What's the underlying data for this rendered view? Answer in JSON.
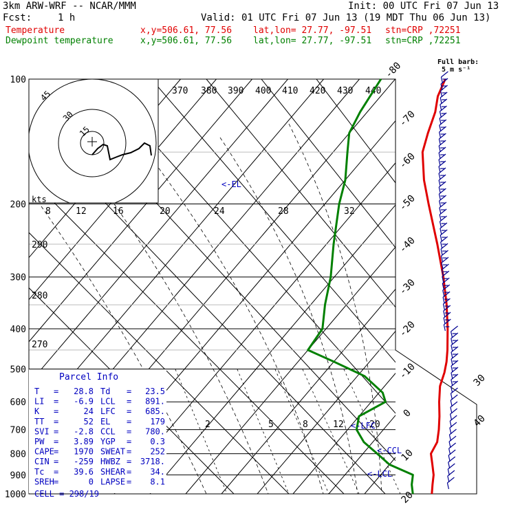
{
  "header": {
    "model": "3km ARW-WRF -- NCAR/MMM",
    "init": "Init: 00 UTC Fri 07 Jun 13",
    "fcst_label": "Fcst:",
    "fcst_value": "1 h",
    "valid": "Valid: 01 UTC Fri 07 Jun 13 (19 MDT Thu 06 Jun 13)",
    "temp_label": "Temperature",
    "dew_label": "Dewpoint temperature",
    "xy": "x,y=506.61, 77.56",
    "latlon": "lat,lon= 27.77, -97.51",
    "stn": "stn=CRP ,72251"
  },
  "colors": {
    "temperature": "#e00000",
    "dewpoint": "#008000",
    "parcel_info": "#0000c0",
    "wind": "#000090",
    "grid": "#000000"
  },
  "barb_legend": {
    "line1": "Full barb:",
    "line2": "5 m s⁻¹"
  },
  "hodograph": {
    "speed_unit": "kts",
    "ring_labels": [
      "15",
      "30",
      "45"
    ],
    "speed_ticks": [
      "8",
      "12",
      "16",
      "20",
      "24",
      "28",
      "32"
    ]
  },
  "theta_labels": [
    "370",
    "380",
    "390",
    "400",
    "410",
    "420",
    "430",
    "440"
  ],
  "theta_side_labels": [
    "290",
    "280",
    "270"
  ],
  "mixing_ratio_labels": [
    "2",
    "5",
    "8",
    "12",
    "20"
  ],
  "level_markers": [
    "EL",
    "LFC",
    "CCL",
    "LCL"
  ],
  "chart_data": {
    "type": "line",
    "title": "",
    "ylabel": "",
    "y_scale": "log",
    "ylim": [
      1000,
      100
    ],
    "pressure_ticks": [
      100,
      200,
      300,
      400,
      500,
      600,
      700,
      800,
      900,
      1000
    ],
    "isotherm_labels": [
      -80,
      -70,
      -60,
      -50,
      -40,
      -30,
      -20,
      -10,
      0,
      10,
      20,
      30,
      40
    ],
    "series": [
      {
        "name": "Temperature",
        "points": [
          [
            1000,
            28.8
          ],
          [
            950,
            26.8
          ],
          [
            900,
            24.8
          ],
          [
            850,
            22.0
          ],
          [
            800,
            19.0
          ],
          [
            750,
            18.0
          ],
          [
            700,
            15.5
          ],
          [
            650,
            12.5
          ],
          [
            600,
            9.0
          ],
          [
            550,
            5.5
          ],
          [
            510,
            3.5
          ],
          [
            480,
            1.5
          ],
          [
            450,
            -1.0
          ],
          [
            400,
            -6.0
          ],
          [
            350,
            -12.0
          ],
          [
            300,
            -19.5
          ],
          [
            250,
            -29.0
          ],
          [
            200,
            -41.0
          ],
          [
            175,
            -48.0
          ],
          [
            150,
            -55.0
          ],
          [
            135,
            -58.0
          ],
          [
            120,
            -61.0
          ],
          [
            110,
            -64.0
          ],
          [
            100,
            -66.0
          ]
        ]
      },
      {
        "name": "Dewpoint temperature",
        "points": [
          [
            1000,
            23.5
          ],
          [
            950,
            21.0
          ],
          [
            900,
            19.0
          ],
          [
            850,
            10.0
          ],
          [
            800,
            4.0
          ],
          [
            750,
            -2.5
          ],
          [
            700,
            -7.5
          ],
          [
            650,
            -10.0
          ],
          [
            600,
            -6.0
          ],
          [
            570,
            -9.0
          ],
          [
            520,
            -18.0
          ],
          [
            480,
            -30.0
          ],
          [
            450,
            -40.0
          ],
          [
            400,
            -41.0
          ],
          [
            350,
            -46.0
          ],
          [
            300,
            -51.0
          ],
          [
            250,
            -58.0
          ],
          [
            200,
            -66.0
          ],
          [
            175,
            -70.0
          ],
          [
            150,
            -76.0
          ],
          [
            135,
            -80.0
          ],
          [
            120,
            -82.0
          ],
          [
            100,
            -84.0
          ]
        ]
      }
    ]
  },
  "parcel_info": {
    "title": "Parcel Info",
    "rows": [
      {
        "k1": "T",
        "v1": "28.8",
        "k2": "Td",
        "v2": "23.5"
      },
      {
        "k1": "LI",
        "v1": "-6.9",
        "k2": "LCL",
        "v2": "891."
      },
      {
        "k1": "K",
        "v1": "24",
        "k2": "LFC",
        "v2": "685."
      },
      {
        "k1": "TT",
        "v1": "52",
        "k2": "EL",
        "v2": "179"
      },
      {
        "k1": "SVI",
        "v1": "-2.8",
        "k2": "CCL",
        "v2": "780."
      },
      {
        "k1": "PW",
        "v1": "3.89",
        "k2": "YGP",
        "v2": "0.3"
      },
      {
        "k1": "CAPE",
        "v1": "1970",
        "k2": "SWEAT",
        "v2": "252"
      },
      {
        "k1": "CIN",
        "v1": "-259",
        "k2": "HWBZ",
        "v2": "3718."
      },
      {
        "k1": "Tc",
        "v1": "39.6",
        "k2": "SHEAR",
        "v2": "34."
      },
      {
        "k1": "SREH",
        "v1": "0",
        "k2": "LAPSE",
        "v2": "8.1"
      }
    ],
    "cell": "CELL = 298/19"
  }
}
